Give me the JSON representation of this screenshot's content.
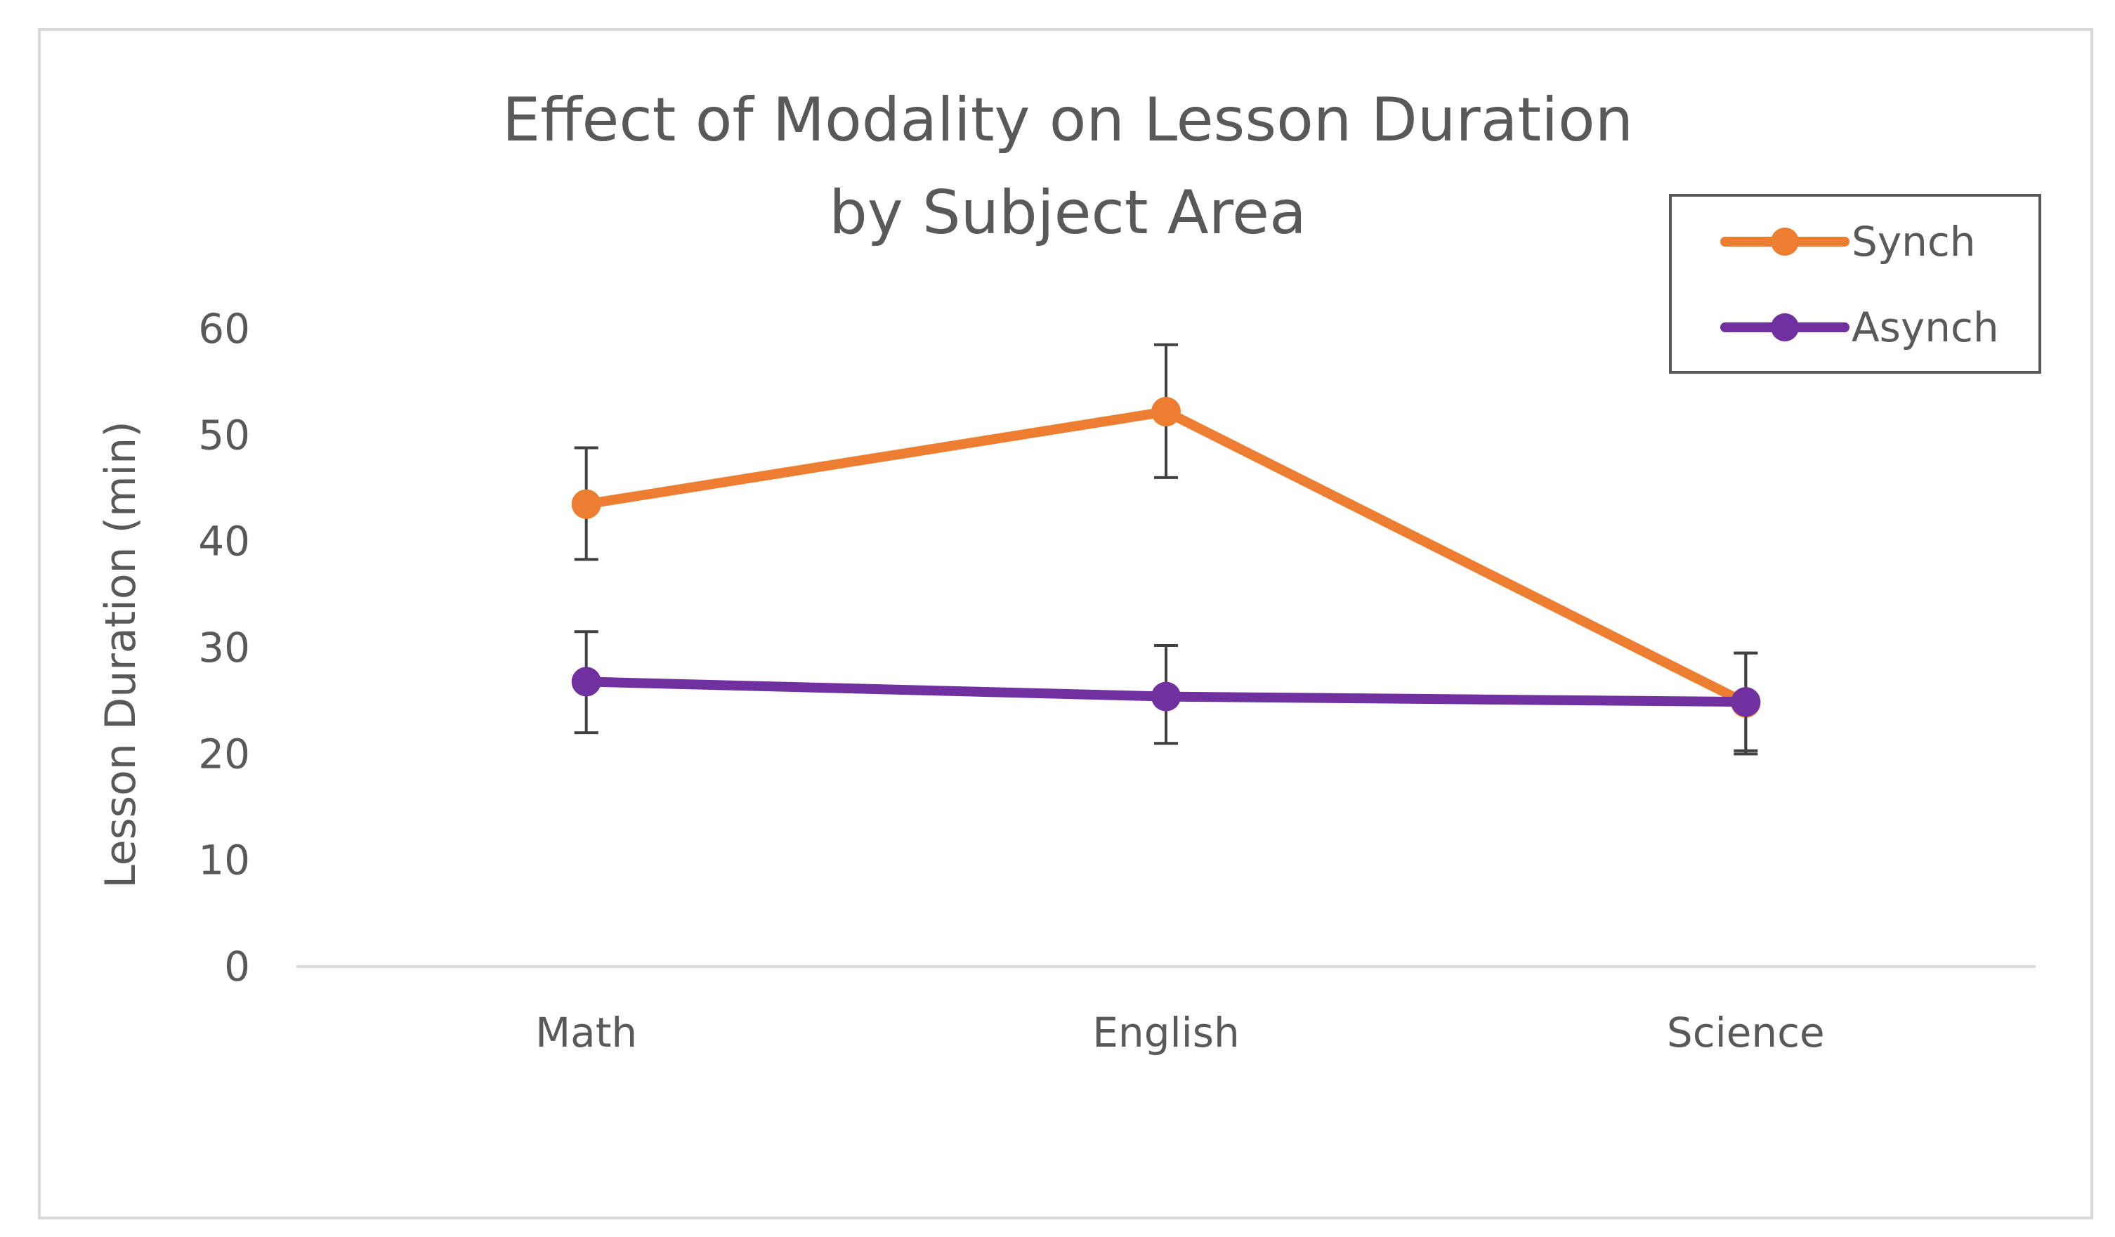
{
  "chart_data": {
    "type": "line",
    "title": [
      "Effect of  Modality on Lesson Duration",
      "by Subject Area"
    ],
    "xlabel": "",
    "ylabel": "Lesson Duration (min)",
    "categories": [
      "Math",
      "English",
      "Science"
    ],
    "ylim": [
      0,
      60
    ],
    "yticks": [
      0,
      10,
      20,
      30,
      40,
      50,
      60
    ],
    "grid": false,
    "legend_position": "top-right",
    "series": [
      {
        "name": "Synch",
        "color": "#ED7D31",
        "values": [
          43.5,
          52.2,
          24.8
        ],
        "error_low": [
          38.3,
          46.0,
          20.0
        ],
        "error_high": [
          48.8,
          58.5,
          29.5
        ]
      },
      {
        "name": "Asynch",
        "color": "#7030A0",
        "values": [
          26.8,
          25.4,
          24.9
        ],
        "error_low": [
          22.0,
          21.0,
          20.3
        ],
        "error_high": [
          31.5,
          30.2,
          29.5
        ]
      }
    ]
  }
}
